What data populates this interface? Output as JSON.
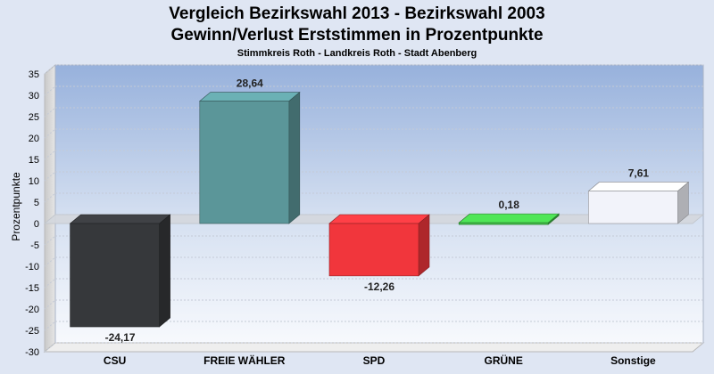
{
  "chart_data": {
    "type": "bar",
    "title_line1": "Vergleich Bezirkswahl 2013 - Bezirkswahl 2003",
    "title_line2": "Gewinn/Verlust Erststimmen in Prozentpunkte",
    "subtitle": "Stimmkreis Roth - Landkreis Roth - Stadt Abenberg",
    "ylabel": "Prozentpunkte",
    "xlabel": "",
    "ylim": [
      -30,
      35
    ],
    "yticks": [
      35,
      30,
      25,
      20,
      15,
      10,
      5,
      0,
      -5,
      -10,
      -15,
      -20,
      -25,
      -30
    ],
    "grid": true,
    "categories": [
      "CSU",
      "FREIE WÄHLER",
      "SPD",
      "GRÜNE",
      "Sonstige"
    ],
    "values": [
      -24.17,
      28.64,
      -12.26,
      0.18,
      7.61
    ],
    "value_labels": [
      "-24,17",
      "28,64",
      "-12,26",
      "0,18",
      "7,61"
    ],
    "colors": [
      "#36383b",
      "#5b9699",
      "#f1363c",
      "#43c34a",
      "#f2f3fa"
    ]
  }
}
